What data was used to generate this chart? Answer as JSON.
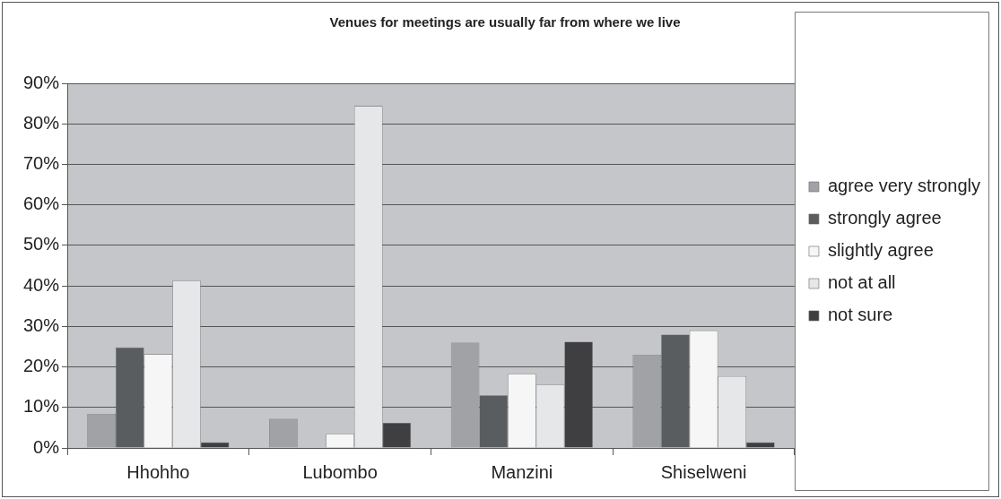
{
  "chart_data": {
    "type": "bar",
    "title": "Venues for meetings are usually far from where we live",
    "categories": [
      "Hhohho",
      "Lubombo",
      "Manzini",
      "Shiselweni"
    ],
    "series": [
      {
        "name": "agree very strongly",
        "color": "#a0a2a6",
        "values": [
          8.4,
          7.2,
          26,
          23
        ]
      },
      {
        "name": "strongly agree",
        "color": "#5a5d60",
        "values": [
          24.8,
          null,
          13,
          28
        ]
      },
      {
        "name": "slightly agree",
        "color": "#f6f6f6",
        "values": [
          23.2,
          3.5,
          18.3,
          29
        ]
      },
      {
        "name": "not at all",
        "color": "#e6e7e9",
        "values": [
          41.3,
          84.4,
          15.6,
          17.7
        ]
      },
      {
        "name": "not sure",
        "color": "#3f3f42",
        "values": [
          1.4,
          6.2,
          26.2,
          1.4
        ]
      }
    ],
    "ylim": [
      0,
      90
    ],
    "yticks": [
      {
        "value": 0,
        "label": "0%"
      },
      {
        "value": 10,
        "label": "10%"
      },
      {
        "value": 20,
        "label": "20%"
      },
      {
        "value": 30,
        "label": "30%"
      },
      {
        "value": 40,
        "label": "40%"
      },
      {
        "value": 50,
        "label": "50%"
      },
      {
        "value": 60,
        "label": "60%"
      },
      {
        "value": 70,
        "label": "70%"
      },
      {
        "value": 80,
        "label": "80%"
      },
      {
        "value": 90,
        "label": "90%"
      }
    ],
    "grid": "y",
    "legend": "right"
  }
}
